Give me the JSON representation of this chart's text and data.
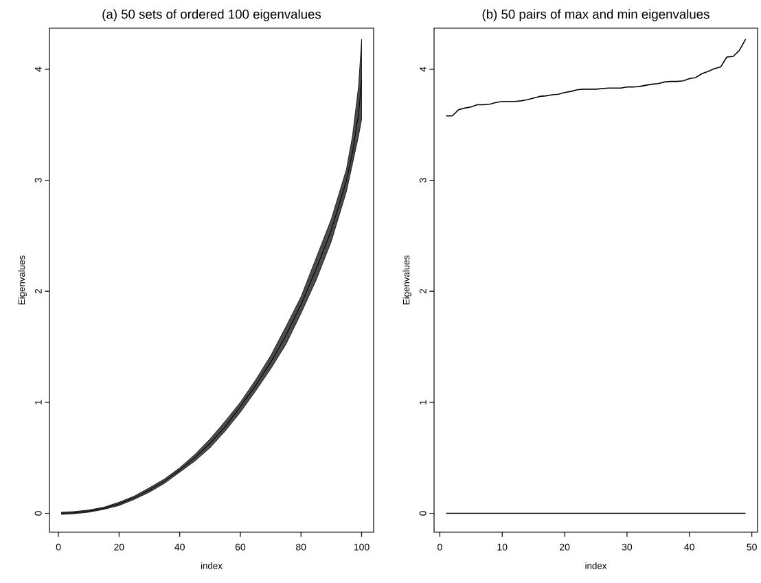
{
  "chart_data": [
    {
      "type": "line",
      "title": "(a) 50 sets of ordered 100 eigenvalues",
      "xlabel": "index",
      "ylabel": "Eigenvalues",
      "xlim": [
        -2.96,
        103.96
      ],
      "ylim": [
        -0.17,
        4.37
      ],
      "xticks": [
        0,
        20,
        40,
        60,
        80,
        100
      ],
      "yticks": [
        0,
        1,
        2,
        3,
        4
      ],
      "x": [
        1,
        5,
        10,
        15,
        20,
        25,
        30,
        35,
        40,
        45,
        50,
        55,
        60,
        65,
        70,
        75,
        80,
        85,
        90,
        95,
        97,
        99,
        100
      ],
      "series": [
        {
          "color": "#000000",
          "values": [
            0.0,
            0.005,
            0.02,
            0.045,
            0.085,
            0.14,
            0.21,
            0.29,
            0.39,
            0.5,
            0.63,
            0.78,
            0.96,
            1.15,
            1.36,
            1.6,
            1.88,
            2.2,
            2.55,
            3.0,
            3.25,
            3.6,
            3.9
          ],
          "lower": [
            -0.01,
            -0.005,
            0.01,
            0.035,
            0.07,
            0.125,
            0.19,
            0.27,
            0.37,
            0.47,
            0.59,
            0.74,
            0.91,
            1.1,
            1.3,
            1.52,
            1.8,
            2.1,
            2.45,
            2.9,
            3.15,
            3.4,
            3.55
          ],
          "upper": [
            0.01,
            0.015,
            0.03,
            0.055,
            0.1,
            0.155,
            0.23,
            0.31,
            0.41,
            0.53,
            0.67,
            0.83,
            1.0,
            1.2,
            1.42,
            1.68,
            1.95,
            2.3,
            2.65,
            3.1,
            3.4,
            3.85,
            4.27
          ]
        }
      ]
    },
    {
      "type": "line",
      "title": "(b) 50 pairs of max and min eigenvalues",
      "xlabel": "index",
      "ylabel": "Eigenvalues",
      "xlim": [
        -0.92,
        50.92
      ],
      "ylim": [
        -0.17,
        4.37
      ],
      "xticks": [
        0,
        10,
        20,
        30,
        40,
        50
      ],
      "yticks": [
        0,
        1,
        2,
        3,
        4
      ],
      "x": [
        1,
        2,
        3,
        4,
        5,
        6,
        7,
        8,
        9,
        10,
        11,
        12,
        13,
        14,
        15,
        16,
        17,
        18,
        19,
        20,
        21,
        22,
        23,
        24,
        25,
        26,
        27,
        28,
        29,
        30,
        31,
        32,
        33,
        34,
        35,
        36,
        37,
        38,
        39,
        40,
        41,
        42,
        43,
        44,
        45,
        46,
        47,
        48,
        49
      ],
      "series": [
        {
          "color": "#000000",
          "values": [
            3.58,
            3.58,
            3.635,
            3.65,
            3.66,
            3.68,
            3.68,
            3.685,
            3.7,
            3.71,
            3.71,
            3.71,
            3.715,
            3.725,
            3.74,
            3.755,
            3.76,
            3.77,
            3.775,
            3.79,
            3.8,
            3.815,
            3.82,
            3.82,
            3.82,
            3.825,
            3.83,
            3.83,
            3.83,
            3.84,
            3.84,
            3.845,
            3.855,
            3.865,
            3.87,
            3.885,
            3.89,
            3.89,
            3.895,
            3.915,
            3.925,
            3.96,
            3.98,
            4.005,
            4.02,
            4.11,
            4.115,
            4.17,
            4.27
          ]
        },
        {
          "color": "#000000",
          "values": [
            0,
            0,
            0,
            0,
            0,
            0,
            0,
            0,
            0,
            0,
            0,
            0,
            0,
            0,
            0,
            0,
            0,
            0,
            0,
            0,
            0,
            0,
            0,
            0,
            0,
            0,
            0,
            0,
            0,
            0,
            0,
            0,
            0,
            0,
            0,
            0,
            0,
            0,
            0,
            0,
            0,
            0,
            0,
            0,
            0,
            0,
            0,
            0,
            0
          ]
        }
      ]
    }
  ]
}
